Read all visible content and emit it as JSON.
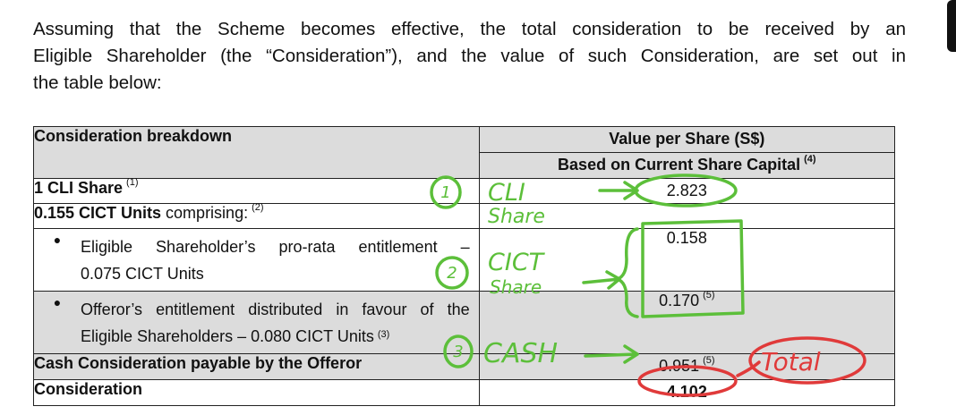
{
  "intro": {
    "line1": "Assuming that the Scheme becomes effective, the total consideration to be received by an",
    "line2": "Eligible Shareholder (the “Consideration”), and the value of such Consideration, are set out in",
    "line3": "the table below:"
  },
  "table": {
    "header_left": "Consideration breakdown",
    "header_right_1": "Value per Share (S$)",
    "header_right_2": "Based on Current Share Capital",
    "header_right_2_note": "(4)",
    "rows": [
      {
        "label": "1 CLI Share",
        "note": "(1)",
        "value": "2.823",
        "value_note": ""
      },
      {
        "label_bold": "0.155 CICT Units",
        "label_rest": " comprising:",
        "note": "(2)",
        "value": "",
        "value_note": ""
      },
      {
        "bullet_line1": "Eligible Shareholder’s pro-rata entitlement –",
        "bullet_line2": "0.075 CICT Units",
        "note": "",
        "value": "0.158",
        "value_note": ""
      },
      {
        "bullet_line1": "Offeror’s entitlement distributed in favour of the",
        "bullet_line2": "Eligible Shareholders – 0.080 CICT Units",
        "note": "(3)",
        "value": "0.170",
        "value_note": "(5)"
      },
      {
        "label": "Cash Consideration payable by the Offeror",
        "note": "",
        "value": "0.951",
        "value_note": "(5)"
      },
      {
        "label": "Consideration",
        "note": "",
        "value": "4.102",
        "value_note": ""
      }
    ],
    "bullet_symbol": "●"
  },
  "annotations": {
    "num1": "1",
    "num2": "2",
    "num3": "3",
    "cli_line1": "CLI",
    "cli_line2": "Share",
    "cict_line1": "CICT",
    "cict_line2": "Share",
    "cash": "CASH",
    "total": "Total",
    "green": "#5cbf3a",
    "red": "#e03a3a"
  }
}
